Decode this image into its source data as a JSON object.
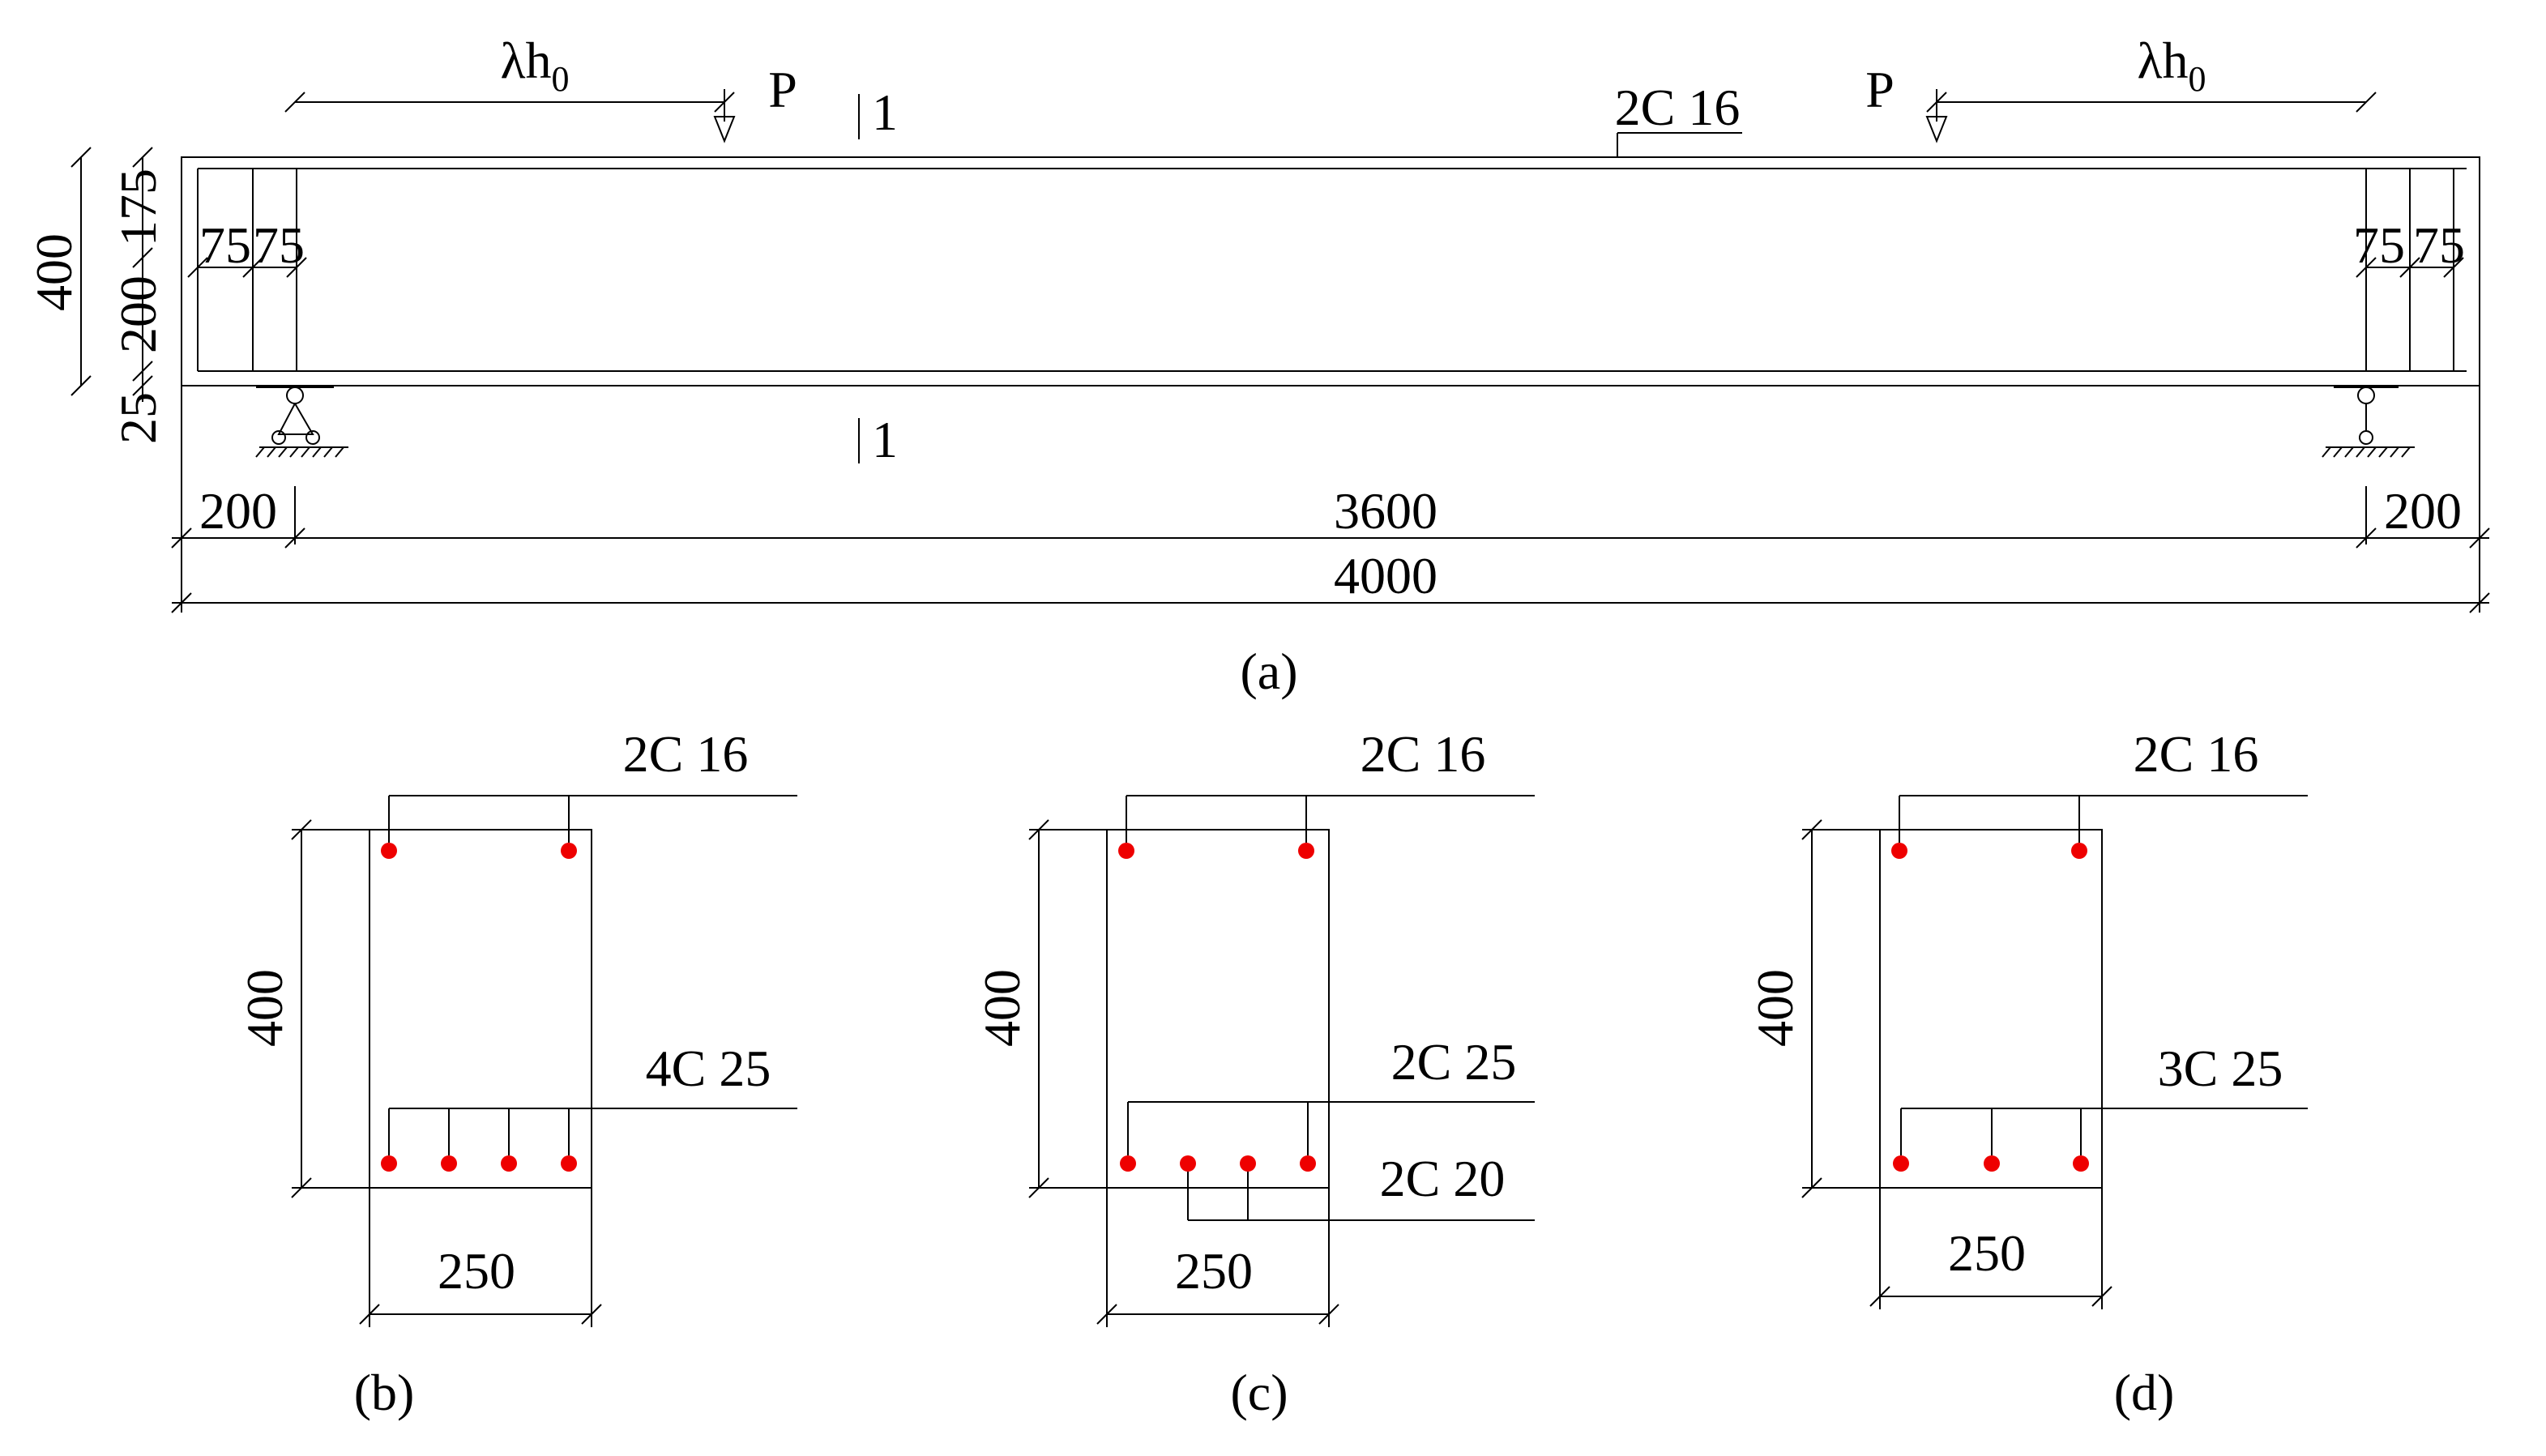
{
  "beam": {
    "lambda_h0_left": {
      "main": "λh",
      "sub": "0"
    },
    "lambda_h0_right": {
      "main": "λh",
      "sub": "0"
    },
    "load_left": "P",
    "load_right": "P",
    "section_mark_top": "1",
    "section_mark_bottom": "1",
    "top_rebar": "2C 16",
    "stirrup_spacing_left": [
      "75",
      "75"
    ],
    "stirrup_spacing_right": [
      "75",
      "75"
    ],
    "height": "400",
    "height_parts": [
      "175",
      "200",
      "25"
    ],
    "overhang_left": "200",
    "span": "3600",
    "overhang_right": "200",
    "length": "4000",
    "caption": "(a)"
  },
  "sections": [
    {
      "top_rebar": "2C 16",
      "bottom_rebar": [
        "4C 25"
      ],
      "height": "400",
      "width": "250",
      "caption": "(b)"
    },
    {
      "top_rebar": "2C 16",
      "bottom_rebar": [
        "2C 25",
        "2C 20"
      ],
      "height": "400",
      "width": "250",
      "caption": "(c)"
    },
    {
      "top_rebar": "2C 16",
      "bottom_rebar": [
        "3C 25"
      ],
      "height": "400",
      "width": "250",
      "caption": "(d)"
    }
  ]
}
